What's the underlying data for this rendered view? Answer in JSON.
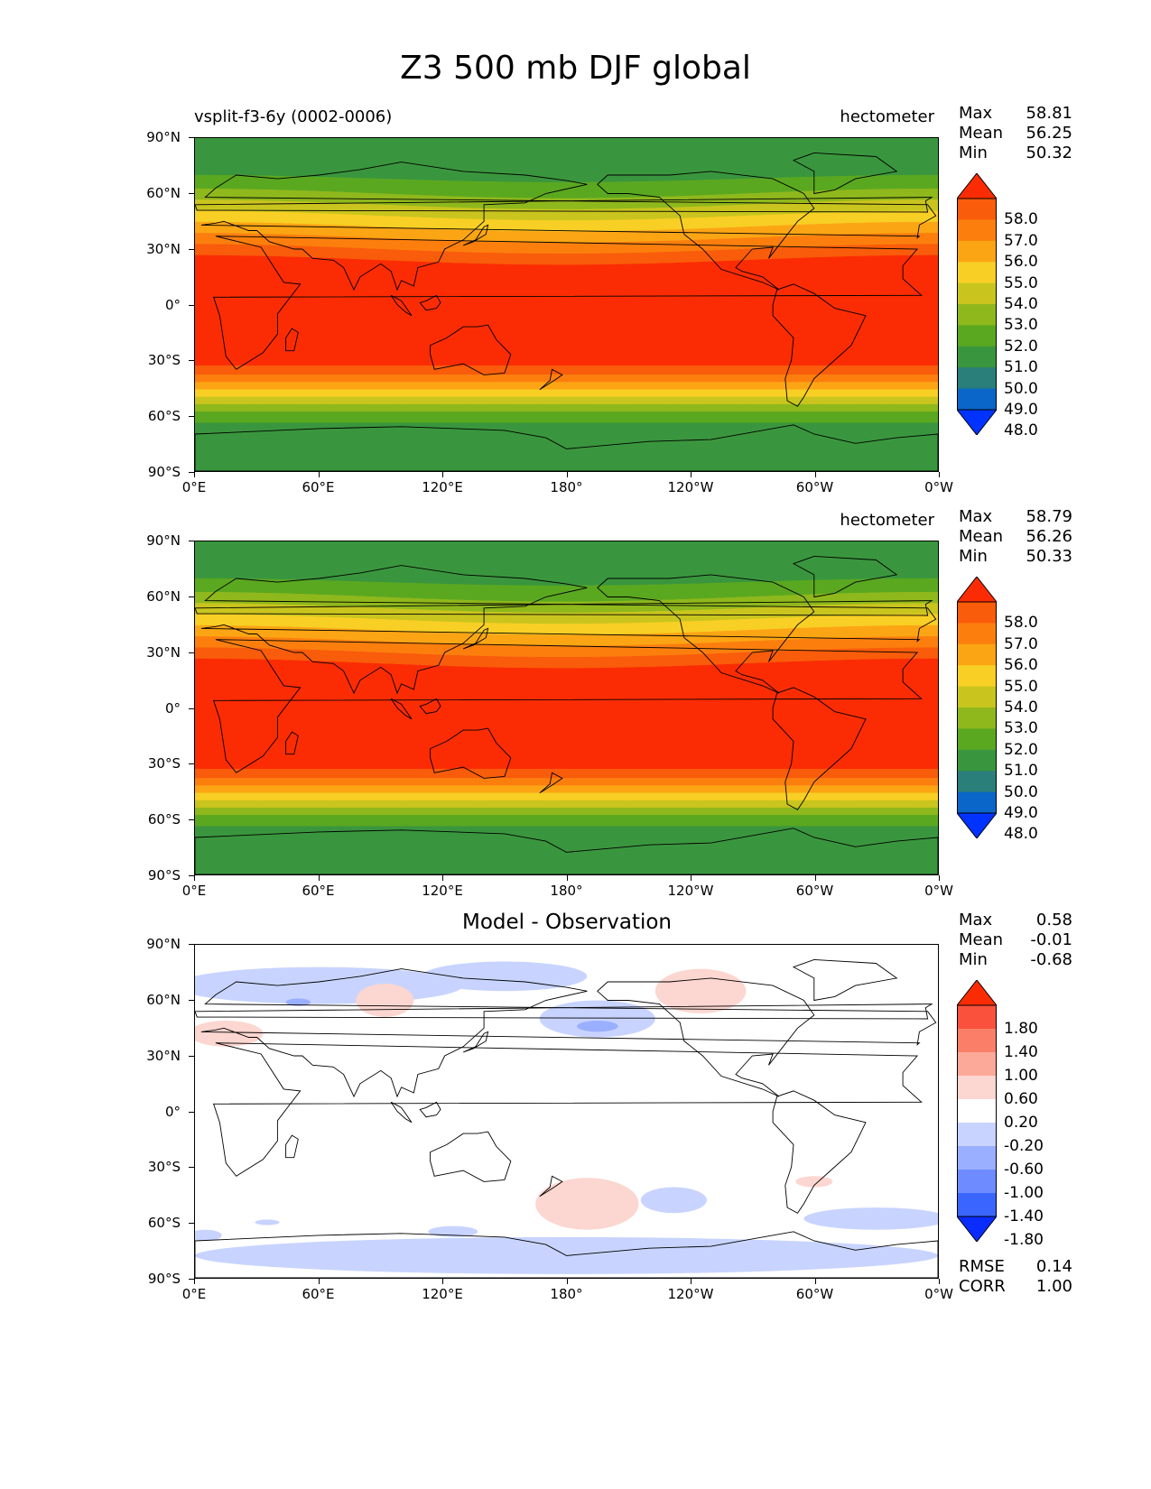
{
  "figure": {
    "title": "Z3 500 mb DJF global"
  },
  "axes": {
    "lat_ticks": [
      "90°N",
      "60°N",
      "30°N",
      "0°",
      "30°S",
      "60°S",
      "90°S"
    ],
    "lon_ticks": [
      "0°E",
      "60°E",
      "120°E",
      "180°",
      "120°W",
      "60°W",
      "0°W"
    ]
  },
  "panels": [
    {
      "subtitle_left": "vsplit-f3-6y (0002-0006)",
      "units": "hectometer",
      "center_title": "",
      "stats": [
        {
          "k": "Max",
          "v": "58.81"
        },
        {
          "k": "Mean",
          "v": "56.25"
        },
        {
          "k": "Min",
          "v": "50.32"
        }
      ],
      "colorbar_labels": [
        "58.0",
        "57.0",
        "56.0",
        "55.0",
        "54.0",
        "53.0",
        "52.0",
        "51.0",
        "50.0",
        "49.0",
        "48.0"
      ]
    },
    {
      "subtitle_left": "",
      "units": "hectometer",
      "center_title": "",
      "stats": [
        {
          "k": "Max",
          "v": "58.79"
        },
        {
          "k": "Mean",
          "v": "56.26"
        },
        {
          "k": "Min",
          "v": "50.33"
        }
      ],
      "colorbar_labels": [
        "58.0",
        "57.0",
        "56.0",
        "55.0",
        "54.0",
        "53.0",
        "52.0",
        "51.0",
        "50.0",
        "49.0",
        "48.0"
      ]
    },
    {
      "subtitle_left": "",
      "units": "",
      "center_title": "Model - Observation",
      "stats": [
        {
          "k": "Max",
          "v": "0.58"
        },
        {
          "k": "Mean",
          "v": "-0.01"
        },
        {
          "k": "Min",
          "v": "-0.68"
        }
      ],
      "colorbar_labels": [
        "1.80",
        "1.40",
        "1.00",
        "0.60",
        "0.20",
        "-0.20",
        "-0.60",
        "-1.00",
        "-1.40",
        "-1.80"
      ],
      "metrics": [
        {
          "k": "RMSE",
          "v": "0.14"
        },
        {
          "k": "CORR",
          "v": "1.00"
        }
      ]
    }
  ],
  "colors": {
    "field_scale": [
      "#0033ff",
      "#0a66c8",
      "#2a7f7a",
      "#3a963e",
      "#5aa820",
      "#8fb81c",
      "#c9c51e",
      "#f8cf24",
      "#fca514",
      "#fc7f0e",
      "#f95c0a",
      "#fb2c03"
    ],
    "diff_scale": [
      "#0a2cff",
      "#3a66ff",
      "#6e8cff",
      "#9aafff",
      "#c8d4ff",
      "#ffffff",
      "#fcd6d0",
      "#fda99a",
      "#fb7f68",
      "#f9513c",
      "#fb2c03"
    ],
    "land_outline": "#000000"
  }
}
